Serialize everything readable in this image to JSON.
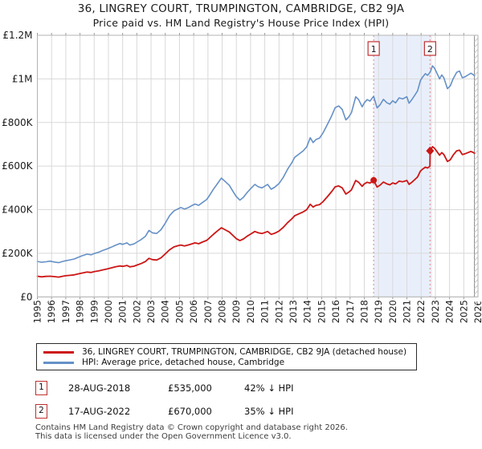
{
  "title": "36, LINGREY COURT, TRUMPINGTON, CAMBRIDGE, CB2 9JA",
  "subtitle": "Price paid vs. HM Land Registry's House Price Index (HPI)",
  "legend": {
    "property_label": "36, LINGREY COURT, TRUMPINGTON, CAMBRIDGE, CB2 9JA (detached house)",
    "hpi_label": "HPI: Average price, detached house, Cambridge"
  },
  "transactions": [
    {
      "num": "1",
      "date": "28-AUG-2018",
      "price": "£535,000",
      "hpi_note": "42% ↓ HPI"
    },
    {
      "num": "2",
      "date": "17-AUG-2022",
      "price": "£670,000",
      "hpi_note": "35% ↓ HPI"
    }
  ],
  "footer": {
    "line1": "Contains HM Land Registry data © Crown copyright and database right 2026.",
    "line2": "This data is licensed under the Open Government Licence v3.0."
  },
  "chart_data": {
    "type": "line",
    "x_axis": {
      "min": 1995,
      "max": 2026,
      "year_labels": [
        1995,
        1996,
        1997,
        1998,
        1999,
        2000,
        2001,
        2002,
        2003,
        2004,
        2005,
        2006,
        2007,
        2008,
        2009,
        2010,
        2011,
        2012,
        2013,
        2014,
        2015,
        2016,
        2017,
        2018,
        2019,
        2020,
        2021,
        2022,
        2023,
        2024,
        2025,
        2026
      ]
    },
    "y_axis": {
      "min": 0,
      "max": 1200,
      "unit": "GBP thousands",
      "ticks": [
        {
          "v": 0,
          "label": "£0"
        },
        {
          "v": 200,
          "label": "£200K"
        },
        {
          "v": 400,
          "label": "£400K"
        },
        {
          "v": 600,
          "label": "£600K"
        },
        {
          "v": 800,
          "label": "£800K"
        },
        {
          "v": 1000,
          "label": "£1M"
        },
        {
          "v": 1200,
          "label": "£1.2M"
        }
      ]
    },
    "grid": true,
    "colors": {
      "grid": "#d9d9d9",
      "border": "#b3b3b3",
      "shade": "#e9effa",
      "dotted_line": "#f09090",
      "marker_box_border": "#c03030",
      "hatch": "#c9c9c9",
      "data_end_line": "#8a8a8a"
    },
    "shaded_region": {
      "from": 2018.66,
      "to": 2022.78
    },
    "data_end": 2025.75,
    "sale_markers": [
      {
        "label": "1",
        "year": 2018.66,
        "value": 535,
        "shape": "circle"
      },
      {
        "label": "2",
        "year": 2022.63,
        "value": 670,
        "shape": "diamond"
      }
    ],
    "series": [
      {
        "name": "HPI: Average price, detached house, Cambridge",
        "color": "#6590c7",
        "width": 1.6,
        "points": [
          [
            1995.0,
            163
          ],
          [
            1995.3,
            159
          ],
          [
            1995.6,
            161
          ],
          [
            1995.9,
            164
          ],
          [
            1996.2,
            160
          ],
          [
            1996.5,
            157
          ],
          [
            1996.8,
            163
          ],
          [
            1997.0,
            166
          ],
          [
            1997.3,
            170
          ],
          [
            1997.6,
            174
          ],
          [
            1997.9,
            182
          ],
          [
            1998.2,
            190
          ],
          [
            1998.5,
            196
          ],
          [
            1998.8,
            193
          ],
          [
            1999.0,
            199
          ],
          [
            1999.3,
            205
          ],
          [
            1999.6,
            213
          ],
          [
            1999.9,
            220
          ],
          [
            2000.2,
            228
          ],
          [
            2000.5,
            237
          ],
          [
            2000.8,
            245
          ],
          [
            2001.0,
            241
          ],
          [
            2001.3,
            248
          ],
          [
            2001.5,
            238
          ],
          [
            2001.8,
            243
          ],
          [
            2002.0,
            251
          ],
          [
            2002.3,
            263
          ],
          [
            2002.6,
            278
          ],
          [
            2002.85,
            305
          ],
          [
            2003.1,
            294
          ],
          [
            2003.4,
            291
          ],
          [
            2003.7,
            308
          ],
          [
            2004.0,
            338
          ],
          [
            2004.3,
            372
          ],
          [
            2004.6,
            394
          ],
          [
            2004.9,
            404
          ],
          [
            2005.1,
            410
          ],
          [
            2005.35,
            403
          ],
          [
            2005.6,
            409
          ],
          [
            2005.9,
            420
          ],
          [
            2006.1,
            426
          ],
          [
            2006.35,
            420
          ],
          [
            2006.6,
            432
          ],
          [
            2006.9,
            446
          ],
          [
            2007.1,
            464
          ],
          [
            2007.4,
            495
          ],
          [
            2007.7,
            522
          ],
          [
            2007.95,
            545
          ],
          [
            2008.2,
            530
          ],
          [
            2008.5,
            512
          ],
          [
            2008.8,
            480
          ],
          [
            2009.0,
            460
          ],
          [
            2009.25,
            444
          ],
          [
            2009.5,
            457
          ],
          [
            2009.75,
            478
          ],
          [
            2010.0,
            496
          ],
          [
            2010.3,
            516
          ],
          [
            2010.55,
            505
          ],
          [
            2010.8,
            500
          ],
          [
            2011.0,
            508
          ],
          [
            2011.2,
            516
          ],
          [
            2011.45,
            494
          ],
          [
            2011.7,
            503
          ],
          [
            2012.0,
            520
          ],
          [
            2012.3,
            548
          ],
          [
            2012.6,
            585
          ],
          [
            2012.9,
            615
          ],
          [
            2013.1,
            640
          ],
          [
            2013.4,
            655
          ],
          [
            2013.7,
            670
          ],
          [
            2013.95,
            688
          ],
          [
            2014.2,
            730
          ],
          [
            2014.4,
            708
          ],
          [
            2014.6,
            722
          ],
          [
            2014.85,
            728
          ],
          [
            2015.1,
            752
          ],
          [
            2015.4,
            790
          ],
          [
            2015.7,
            830
          ],
          [
            2015.95,
            868
          ],
          [
            2016.2,
            876
          ],
          [
            2016.45,
            860
          ],
          [
            2016.7,
            812
          ],
          [
            2016.9,
            825
          ],
          [
            2017.1,
            845
          ],
          [
            2017.4,
            918
          ],
          [
            2017.6,
            905
          ],
          [
            2017.85,
            872
          ],
          [
            2018.0,
            890
          ],
          [
            2018.2,
            905
          ],
          [
            2018.4,
            898
          ],
          [
            2018.66,
            920
          ],
          [
            2018.9,
            867
          ],
          [
            2019.1,
            880
          ],
          [
            2019.35,
            906
          ],
          [
            2019.6,
            890
          ],
          [
            2019.8,
            884
          ],
          [
            2020.0,
            900
          ],
          [
            2020.2,
            890
          ],
          [
            2020.45,
            913
          ],
          [
            2020.7,
            908
          ],
          [
            2020.9,
            915
          ],
          [
            2021.0,
            918
          ],
          [
            2021.15,
            888
          ],
          [
            2021.35,
            905
          ],
          [
            2021.55,
            925
          ],
          [
            2021.75,
            945
          ],
          [
            2021.95,
            992
          ],
          [
            2022.1,
            1008
          ],
          [
            2022.3,
            1024
          ],
          [
            2022.45,
            1016
          ],
          [
            2022.63,
            1031
          ],
          [
            2022.8,
            1060
          ],
          [
            2022.95,
            1048
          ],
          [
            2023.1,
            1028
          ],
          [
            2023.3,
            1000
          ],
          [
            2023.45,
            1018
          ],
          [
            2023.6,
            1005
          ],
          [
            2023.85,
            955
          ],
          [
            2024.05,
            968
          ],
          [
            2024.25,
            1000
          ],
          [
            2024.5,
            1030
          ],
          [
            2024.7,
            1036
          ],
          [
            2024.9,
            1005
          ],
          [
            2025.1,
            1010
          ],
          [
            2025.3,
            1018
          ],
          [
            2025.5,
            1026
          ],
          [
            2025.65,
            1020
          ],
          [
            2025.75,
            1014
          ]
        ]
      },
      {
        "name": "36, LINGREY COURT, TRUMPINGTON, CAMBRIDGE, CB2 9JA (detached house)",
        "color": "#cc1616",
        "width": 1.8,
        "points": [
          [
            1995.0,
            95
          ],
          [
            1995.3,
            92
          ],
          [
            1995.6,
            94
          ],
          [
            1995.9,
            95
          ],
          [
            1996.2,
            93
          ],
          [
            1996.5,
            91
          ],
          [
            1996.8,
            95
          ],
          [
            1997.0,
            97
          ],
          [
            1997.3,
            99
          ],
          [
            1997.6,
            101
          ],
          [
            1997.9,
            106
          ],
          [
            1998.2,
            110
          ],
          [
            1998.5,
            114
          ],
          [
            1998.8,
            112
          ],
          [
            1999.0,
            116
          ],
          [
            1999.3,
            119
          ],
          [
            1999.6,
            124
          ],
          [
            1999.9,
            128
          ],
          [
            2000.2,
            133
          ],
          [
            2000.5,
            138
          ],
          [
            2000.8,
            142
          ],
          [
            2001.0,
            140
          ],
          [
            2001.3,
            144
          ],
          [
            2001.5,
            138
          ],
          [
            2001.8,
            141
          ],
          [
            2002.0,
            146
          ],
          [
            2002.3,
            153
          ],
          [
            2002.6,
            162
          ],
          [
            2002.85,
            177
          ],
          [
            2003.1,
            171
          ],
          [
            2003.4,
            169
          ],
          [
            2003.7,
            179
          ],
          [
            2004.0,
            197
          ],
          [
            2004.3,
            216
          ],
          [
            2004.6,
            229
          ],
          [
            2004.9,
            235
          ],
          [
            2005.1,
            238
          ],
          [
            2005.35,
            234
          ],
          [
            2005.6,
            238
          ],
          [
            2005.9,
            244
          ],
          [
            2006.1,
            248
          ],
          [
            2006.35,
            244
          ],
          [
            2006.6,
            251
          ],
          [
            2006.9,
            259
          ],
          [
            2007.1,
            270
          ],
          [
            2007.4,
            288
          ],
          [
            2007.7,
            304
          ],
          [
            2007.95,
            317
          ],
          [
            2008.2,
            308
          ],
          [
            2008.5,
            298
          ],
          [
            2008.8,
            279
          ],
          [
            2009.0,
            267
          ],
          [
            2009.25,
            258
          ],
          [
            2009.5,
            266
          ],
          [
            2009.75,
            278
          ],
          [
            2010.0,
            288
          ],
          [
            2010.3,
            300
          ],
          [
            2010.55,
            294
          ],
          [
            2010.8,
            291
          ],
          [
            2011.0,
            295
          ],
          [
            2011.2,
            300
          ],
          [
            2011.45,
            287
          ],
          [
            2011.7,
            292
          ],
          [
            2012.0,
            302
          ],
          [
            2012.3,
            319
          ],
          [
            2012.6,
            340
          ],
          [
            2012.9,
            358
          ],
          [
            2013.1,
            372
          ],
          [
            2013.4,
            381
          ],
          [
            2013.7,
            390
          ],
          [
            2013.95,
            400
          ],
          [
            2014.2,
            425
          ],
          [
            2014.4,
            412
          ],
          [
            2014.6,
            420
          ],
          [
            2014.85,
            423
          ],
          [
            2015.1,
            437
          ],
          [
            2015.4,
            459
          ],
          [
            2015.7,
            483
          ],
          [
            2015.95,
            505
          ],
          [
            2016.2,
            509
          ],
          [
            2016.45,
            500
          ],
          [
            2016.7,
            472
          ],
          [
            2016.9,
            480
          ],
          [
            2017.1,
            491
          ],
          [
            2017.4,
            534
          ],
          [
            2017.6,
            526
          ],
          [
            2017.85,
            507
          ],
          [
            2018.0,
            518
          ],
          [
            2018.2,
            526
          ],
          [
            2018.4,
            522
          ],
          [
            2018.66,
            535
          ],
          [
            2018.9,
            504
          ],
          [
            2019.1,
            512
          ],
          [
            2019.35,
            527
          ],
          [
            2019.6,
            518
          ],
          [
            2019.8,
            514
          ],
          [
            2020.0,
            523
          ],
          [
            2020.2,
            518
          ],
          [
            2020.45,
            531
          ],
          [
            2020.7,
            528
          ],
          [
            2020.9,
            532
          ],
          [
            2021.0,
            534
          ],
          [
            2021.15,
            516
          ],
          [
            2021.35,
            526
          ],
          [
            2021.55,
            538
          ],
          [
            2021.75,
            550
          ],
          [
            2021.95,
            577
          ],
          [
            2022.1,
            586
          ],
          [
            2022.3,
            595
          ],
          [
            2022.45,
            591
          ],
          [
            2022.62,
            600
          ],
          [
            2022.63,
            670
          ],
          [
            2022.8,
            689
          ],
          [
            2022.95,
            681
          ],
          [
            2023.1,
            668
          ],
          [
            2023.3,
            650
          ],
          [
            2023.45,
            662
          ],
          [
            2023.6,
            653
          ],
          [
            2023.85,
            621
          ],
          [
            2024.05,
            629
          ],
          [
            2024.25,
            650
          ],
          [
            2024.5,
            670
          ],
          [
            2024.7,
            673
          ],
          [
            2024.9,
            653
          ],
          [
            2025.1,
            657
          ],
          [
            2025.3,
            662
          ],
          [
            2025.5,
            667
          ],
          [
            2025.65,
            663
          ],
          [
            2025.75,
            659
          ]
        ]
      }
    ]
  }
}
